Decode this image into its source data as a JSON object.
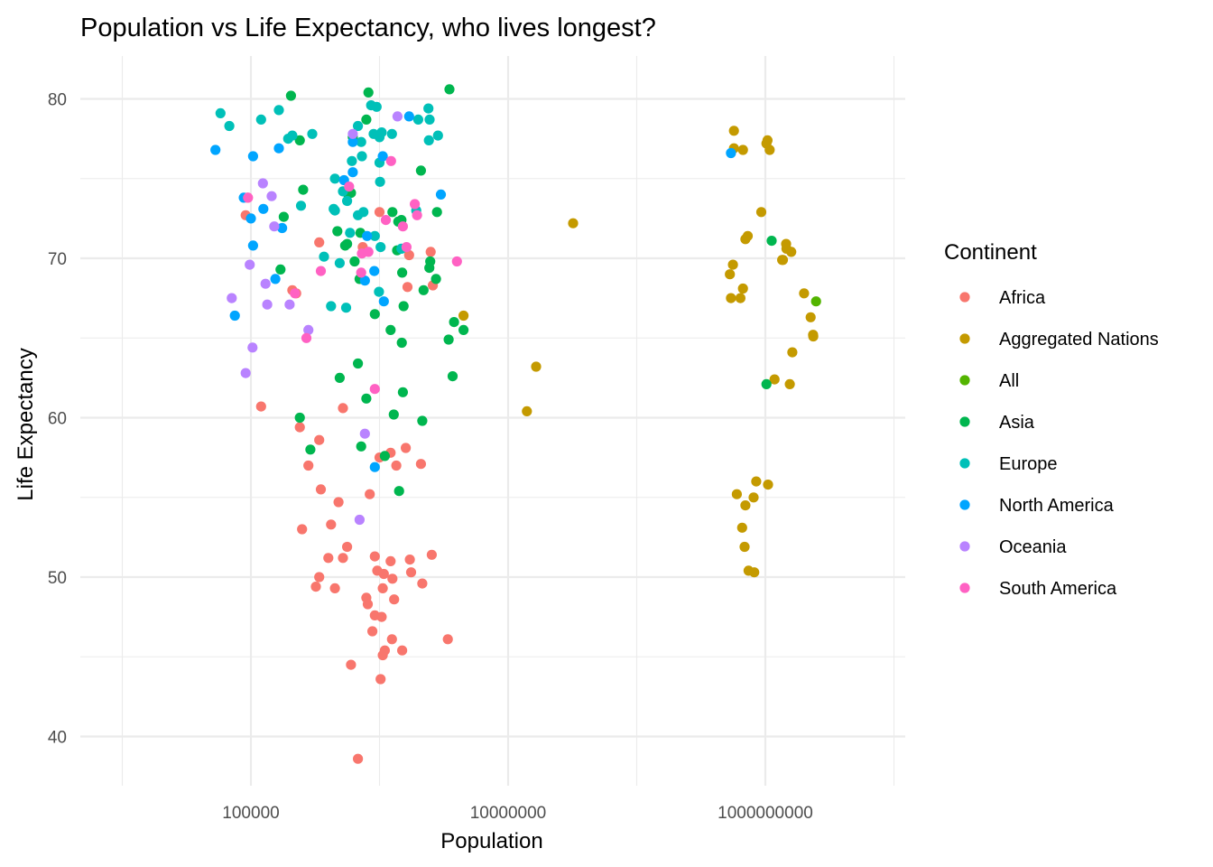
{
  "chart_data": {
    "type": "scatter",
    "title": "Population vs Life Expectancy, who lives longest?",
    "xlabel": "Population",
    "ylabel": "Life Expectancy",
    "x_scale": "log10",
    "xlim": [
      9000,
      7000000000
    ],
    "ylim": [
      37,
      83
    ],
    "x_ticks": [
      100000,
      10000000,
      1000000000
    ],
    "x_tick_labels": [
      "100000",
      "10000000",
      "1000000000"
    ],
    "y_ticks": [
      40,
      50,
      60,
      70,
      80
    ],
    "y_tick_labels": [
      "40",
      "50",
      "60",
      "70",
      "80"
    ],
    "grid": true,
    "legend": {
      "title": "Continent",
      "position": "right"
    },
    "series": [
      {
        "name": "Africa",
        "color": "#F8766D",
        "points": [
          [
            91000,
            72.7
          ],
          [
            94000,
            73.8
          ],
          [
            120000,
            60.7
          ],
          [
            210000,
            68.0
          ],
          [
            225000,
            67.8
          ],
          [
            240000,
            59.4
          ],
          [
            250000,
            53.0
          ],
          [
            280000,
            57.0
          ],
          [
            340000,
            58.6
          ],
          [
            350000,
            55.5
          ],
          [
            340000,
            50.0
          ],
          [
            320000,
            49.4
          ],
          [
            400000,
            51.2
          ],
          [
            420000,
            53.3
          ],
          [
            450000,
            49.3
          ],
          [
            480000,
            54.7
          ],
          [
            520000,
            51.2
          ],
          [
            520000,
            60.6
          ],
          [
            560000,
            51.9
          ],
          [
            340000,
            71.0
          ],
          [
            600000,
            44.5
          ],
          [
            680000,
            38.6
          ],
          [
            740000,
            70.7
          ],
          [
            790000,
            48.7
          ],
          [
            810000,
            48.3
          ],
          [
            840000,
            55.2
          ],
          [
            880000,
            46.6
          ],
          [
            920000,
            51.3
          ],
          [
            920000,
            47.6
          ],
          [
            960000,
            50.4
          ],
          [
            1000000,
            72.9
          ],
          [
            1000000,
            57.5
          ],
          [
            1020000,
            43.6
          ],
          [
            1040000,
            47.5
          ],
          [
            1060000,
            49.3
          ],
          [
            1060000,
            45.1
          ],
          [
            1080000,
            50.2
          ],
          [
            1100000,
            45.4
          ],
          [
            1220000,
            51.0
          ],
          [
            1220000,
            57.8
          ],
          [
            1250000,
            46.1
          ],
          [
            1260000,
            49.9
          ],
          [
            1300000,
            48.6
          ],
          [
            1350000,
            57.0
          ],
          [
            1500000,
            45.4
          ],
          [
            1600000,
            58.1
          ],
          [
            1650000,
            68.2
          ],
          [
            1700000,
            70.2
          ],
          [
            1720000,
            51.1
          ],
          [
            1760000,
            50.3
          ],
          [
            2100000,
            57.1
          ],
          [
            2150000,
            49.6
          ],
          [
            2500000,
            70.4
          ],
          [
            2550000,
            51.4
          ],
          [
            2600000,
            68.3
          ],
          [
            3400000,
            46.1
          ]
        ]
      },
      {
        "name": "Aggregated Nations",
        "color": "#C49A00",
        "points": [
          [
            4500000,
            66.4
          ],
          [
            14000000,
            60.4
          ],
          [
            16500000,
            63.2
          ],
          [
            32000000,
            72.2
          ],
          [
            530000000,
            69.0
          ],
          [
            540000000,
            67.5
          ],
          [
            570000000,
            76.9
          ],
          [
            570000000,
            78.0
          ],
          [
            560000000,
            69.6
          ],
          [
            600000000,
            55.2
          ],
          [
            640000000,
            67.5
          ],
          [
            660000000,
            53.1
          ],
          [
            670000000,
            76.8
          ],
          [
            670000000,
            68.1
          ],
          [
            690000000,
            51.9
          ],
          [
            700000000,
            54.5
          ],
          [
            700000000,
            71.2
          ],
          [
            730000000,
            71.4
          ],
          [
            740000000,
            50.4
          ],
          [
            810000000,
            55.0
          ],
          [
            820000000,
            50.3
          ],
          [
            850000000,
            56.0
          ],
          [
            930000000,
            72.9
          ],
          [
            1020000000,
            77.2
          ],
          [
            1040000000,
            77.4
          ],
          [
            1050000000,
            55.8
          ],
          [
            1080000000,
            76.8
          ],
          [
            1180000000,
            62.4
          ],
          [
            1350000000,
            69.9
          ],
          [
            1370000000,
            69.9
          ],
          [
            1450000000,
            70.9
          ],
          [
            1460000000,
            70.6
          ],
          [
            1550000000,
            62.1
          ],
          [
            1590000000,
            70.4
          ],
          [
            1620000000,
            64.1
          ],
          [
            2000000000,
            67.8
          ],
          [
            2250000000,
            66.3
          ],
          [
            2350000000,
            65.2
          ],
          [
            2360000000,
            65.1
          ]
        ]
      },
      {
        "name": "All",
        "color": "#53B400",
        "points": [
          [
            2480000000,
            67.3
          ]
        ]
      },
      {
        "name": "Asia",
        "color": "#00B64F",
        "points": [
          [
            170000,
            69.3
          ],
          [
            180000,
            72.6
          ],
          [
            205000,
            80.2
          ],
          [
            240000,
            77.4
          ],
          [
            255000,
            74.3
          ],
          [
            240000,
            60.0
          ],
          [
            290000,
            58.0
          ],
          [
            470000,
            71.7
          ],
          [
            490000,
            62.5
          ],
          [
            540000,
            70.8
          ],
          [
            560000,
            70.9
          ],
          [
            560000,
            74.1
          ],
          [
            600000,
            74.1
          ],
          [
            620000,
            77.6
          ],
          [
            640000,
            69.8
          ],
          [
            680000,
            63.4
          ],
          [
            700000,
            68.7
          ],
          [
            710000,
            71.6
          ],
          [
            720000,
            58.2
          ],
          [
            790000,
            78.7
          ],
          [
            790000,
            61.2
          ],
          [
            820000,
            80.4
          ],
          [
            920000,
            66.5
          ],
          [
            1100000,
            57.6
          ],
          [
            1220000,
            65.5
          ],
          [
            1260000,
            72.9
          ],
          [
            1290000,
            60.2
          ],
          [
            1370000,
            70.5
          ],
          [
            1400000,
            72.3
          ],
          [
            1420000,
            55.4
          ],
          [
            1480000,
            72.4
          ],
          [
            1490000,
            64.7
          ],
          [
            1500000,
            69.1
          ],
          [
            1520000,
            61.6
          ],
          [
            1540000,
            67.0
          ],
          [
            2100000,
            75.5
          ],
          [
            2150000,
            59.8
          ],
          [
            2200000,
            68.0
          ],
          [
            2440000,
            69.4
          ],
          [
            2480000,
            69.8
          ],
          [
            2750000,
            68.7
          ],
          [
            2800000,
            72.9
          ],
          [
            3450000,
            64.9
          ],
          [
            3500000,
            80.6
          ],
          [
            3700000,
            62.6
          ],
          [
            3800000,
            66.0
          ],
          [
            4500000,
            65.5
          ],
          [
            1020000000,
            62.1
          ],
          [
            1120000000,
            71.1
          ]
        ]
      },
      {
        "name": "Europe",
        "color": "#00C0B8",
        "points": [
          [
            58000,
            79.1
          ],
          [
            68000,
            78.3
          ],
          [
            120000,
            78.7
          ],
          [
            165000,
            79.3
          ],
          [
            195000,
            77.5
          ],
          [
            210000,
            77.7
          ],
          [
            245000,
            73.3
          ],
          [
            300000,
            77.8
          ],
          [
            370000,
            70.1
          ],
          [
            420000,
            67.0
          ],
          [
            440000,
            73.1
          ],
          [
            450000,
            75.0
          ],
          [
            450000,
            73.0
          ],
          [
            490000,
            69.7
          ],
          [
            520000,
            74.2
          ],
          [
            550000,
            66.9
          ],
          [
            560000,
            73.6
          ],
          [
            590000,
            71.6
          ],
          [
            610000,
            76.1
          ],
          [
            680000,
            78.3
          ],
          [
            680000,
            72.7
          ],
          [
            720000,
            77.3
          ],
          [
            730000,
            76.4
          ],
          [
            750000,
            72.9
          ],
          [
            860000,
            79.6
          ],
          [
            900000,
            77.8
          ],
          [
            920000,
            71.4
          ],
          [
            950000,
            79.5
          ],
          [
            990000,
            67.9
          ],
          [
            1000000,
            77.6
          ],
          [
            1000000,
            76.0
          ],
          [
            1010000,
            74.8
          ],
          [
            1020000,
            70.7
          ],
          [
            1040000,
            77.9
          ],
          [
            1250000,
            77.8
          ],
          [
            1480000,
            70.6
          ],
          [
            1930000,
            73.0
          ],
          [
            2000000,
            78.7
          ],
          [
            2400000,
            79.4
          ],
          [
            2420000,
            77.4
          ],
          [
            2450000,
            78.7
          ],
          [
            2850000,
            77.7
          ]
        ]
      },
      {
        "name": "North America",
        "color": "#00A5FF",
        "points": [
          [
            53000,
            76.8
          ],
          [
            75000,
            66.4
          ],
          [
            88000,
            73.8
          ],
          [
            100000,
            72.5
          ],
          [
            104000,
            70.8
          ],
          [
            104000,
            76.4
          ],
          [
            125000,
            73.1
          ],
          [
            155000,
            68.7
          ],
          [
            165000,
            76.9
          ],
          [
            175000,
            71.9
          ],
          [
            530000,
            74.9
          ],
          [
            620000,
            75.4
          ],
          [
            620000,
            77.3
          ],
          [
            770000,
            68.6
          ],
          [
            800000,
            71.4
          ],
          [
            910000,
            69.2
          ],
          [
            920000,
            56.9
          ],
          [
            1060000,
            76.4
          ],
          [
            1080000,
            67.3
          ],
          [
            1700000,
            78.9
          ],
          [
            3000000,
            74.0
          ],
          [
            540000000,
            76.6
          ]
        ]
      },
      {
        "name": "Oceania",
        "color": "#B983FF",
        "points": [
          [
            71000,
            67.5
          ],
          [
            91000,
            62.8
          ],
          [
            98000,
            69.6
          ],
          [
            103000,
            64.4
          ],
          [
            124000,
            74.7
          ],
          [
            130000,
            68.4
          ],
          [
            134000,
            67.1
          ],
          [
            145000,
            73.9
          ],
          [
            152000,
            72.0
          ],
          [
            200000,
            67.1
          ],
          [
            280000,
            65.5
          ],
          [
            620000,
            77.8
          ],
          [
            700000,
            53.6
          ],
          [
            770000,
            59.0
          ],
          [
            1380000,
            78.9
          ]
        ]
      },
      {
        "name": "South America",
        "color": "#FF61C3",
        "points": [
          [
            95000,
            73.8
          ],
          [
            220000,
            67.8
          ],
          [
            270000,
            65.0
          ],
          [
            350000,
            69.2
          ],
          [
            580000,
            74.5
          ],
          [
            720000,
            69.1
          ],
          [
            730000,
            70.3
          ],
          [
            820000,
            70.4
          ],
          [
            920000,
            61.8
          ],
          [
            1120000,
            72.4
          ],
          [
            1230000,
            76.1
          ],
          [
            1520000,
            72.0
          ],
          [
            1620000,
            70.7
          ],
          [
            1880000,
            73.4
          ],
          [
            1960000,
            72.7
          ],
          [
            4000000,
            69.8
          ]
        ]
      }
    ]
  }
}
